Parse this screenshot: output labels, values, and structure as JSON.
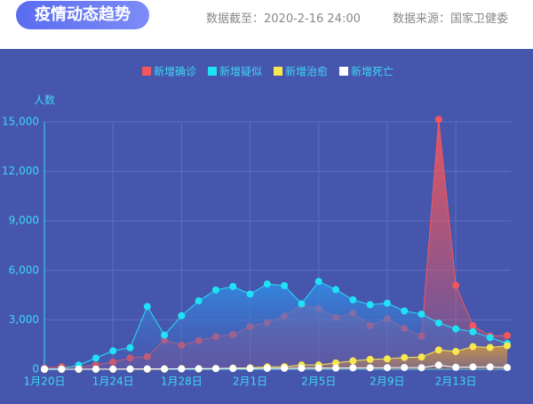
{
  "header": {
    "title": "疫情动态趋势",
    "update_time": "数据截至：2020-2-16 24:00",
    "source": "数据来源：国家卫健委"
  },
  "chart_data": {
    "type": "line",
    "y_label": "人数",
    "categories": [
      "1月20日",
      null,
      null,
      null,
      "1月24日",
      null,
      null,
      null,
      "1月28日",
      null,
      null,
      null,
      "2月1日",
      null,
      null,
      null,
      "2月5日",
      null,
      null,
      null,
      "2月9日",
      null,
      null,
      null,
      "2月13日",
      null,
      null,
      null
    ],
    "series": [
      {
        "name": "新增确诊",
        "color": "#f4565b",
        "values": [
          77,
          149,
          131,
          259,
          444,
          688,
          769,
          1771,
          1459,
          1737,
          1982,
          2102,
          2590,
          2829,
          3235,
          3887,
          3694,
          3143,
          3399,
          2656,
          3062,
          2478,
          2015,
          15152,
          5090,
          2641,
          2009,
          2048
        ]
      },
      {
        "name": "新增疑似",
        "color": "#1fe2f6",
        "values": [
          27,
          26,
          257,
          680,
          1118,
          1309,
          3806,
          2077,
          3248,
          4148,
          4812,
          5019,
          4562,
          5173,
          5072,
          3971,
          5328,
          4833,
          4214,
          3916,
          4008,
          3536,
          3342,
          2807,
          2450,
          2277,
          1918,
          1563
        ]
      },
      {
        "name": "新增治愈",
        "color": "#f6e84e",
        "values": [
          0,
          0,
          0,
          6,
          3,
          11,
          2,
          9,
          43,
          21,
          47,
          72,
          85,
          147,
          157,
          262,
          261,
          387,
          510,
          600,
          632,
          716,
          744,
          1171,
          1081,
          1373,
          1323,
          1425
        ]
      },
      {
        "name": "新增死亡",
        "color": "#ffffff",
        "values": [
          0,
          3,
          8,
          8,
          16,
          15,
          24,
          26,
          26,
          38,
          43,
          46,
          45,
          57,
          64,
          65,
          73,
          73,
          86,
          89,
          97,
          108,
          97,
          254,
          121,
          143,
          142,
          105
        ]
      }
    ],
    "ylim": [
      0,
      15000
    ],
    "yticks": [
      0,
      {
        "value": 3000,
        "label": "3,000"
      },
      {
        "value": 6000,
        "label": "6,000"
      },
      {
        "value": 9000,
        "label": "9,000"
      },
      {
        "value": 12000,
        "label": "12,000"
      },
      {
        "value": 15000,
        "label": "15,000"
      }
    ],
    "grid": true
  }
}
